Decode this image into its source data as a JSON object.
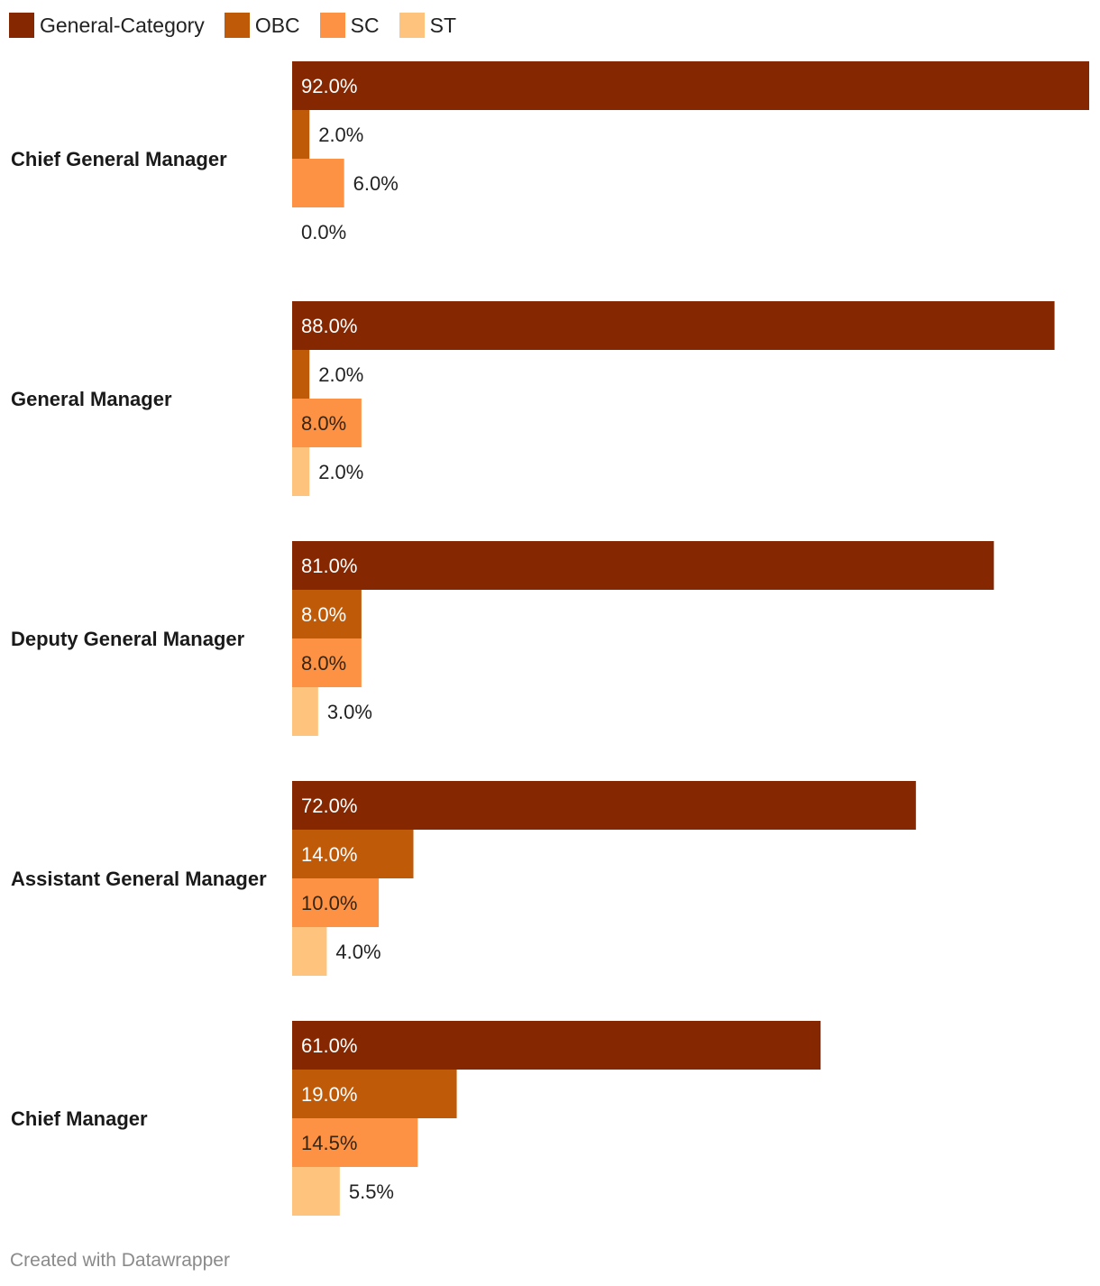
{
  "legend": [
    {
      "label": "General-Category",
      "color": "#852700"
    },
    {
      "label": "OBC",
      "color": "#bf5a09"
    },
    {
      "label": "SC",
      "color": "#fd9244"
    },
    {
      "label": "ST",
      "color": "#fec47e"
    }
  ],
  "chart_data": {
    "type": "bar",
    "orientation": "horizontal",
    "title": "",
    "xlabel": "",
    "ylabel": "",
    "xlim": [
      0,
      92
    ],
    "value_suffix": "%",
    "categories": [
      "Chief General Manager",
      "General Manager",
      "Deputy General Manager",
      "Assistant General Manager",
      "Chief Manager"
    ],
    "series": [
      {
        "name": "General-Category",
        "color": "#852700",
        "values": [
          92.0,
          88.0,
          81.0,
          72.0,
          61.0
        ]
      },
      {
        "name": "OBC",
        "color": "#bf5a09",
        "values": [
          2.0,
          2.0,
          8.0,
          14.0,
          19.0
        ]
      },
      {
        "name": "SC",
        "color": "#fd9244",
        "values": [
          6.0,
          8.0,
          8.0,
          10.0,
          14.5
        ]
      },
      {
        "name": "ST",
        "color": "#fec47e",
        "values": [
          0.0,
          2.0,
          3.0,
          4.0,
          5.5
        ]
      }
    ],
    "legend_position": "top-left"
  },
  "footer": {
    "credit": "Created with Datawrapper"
  }
}
